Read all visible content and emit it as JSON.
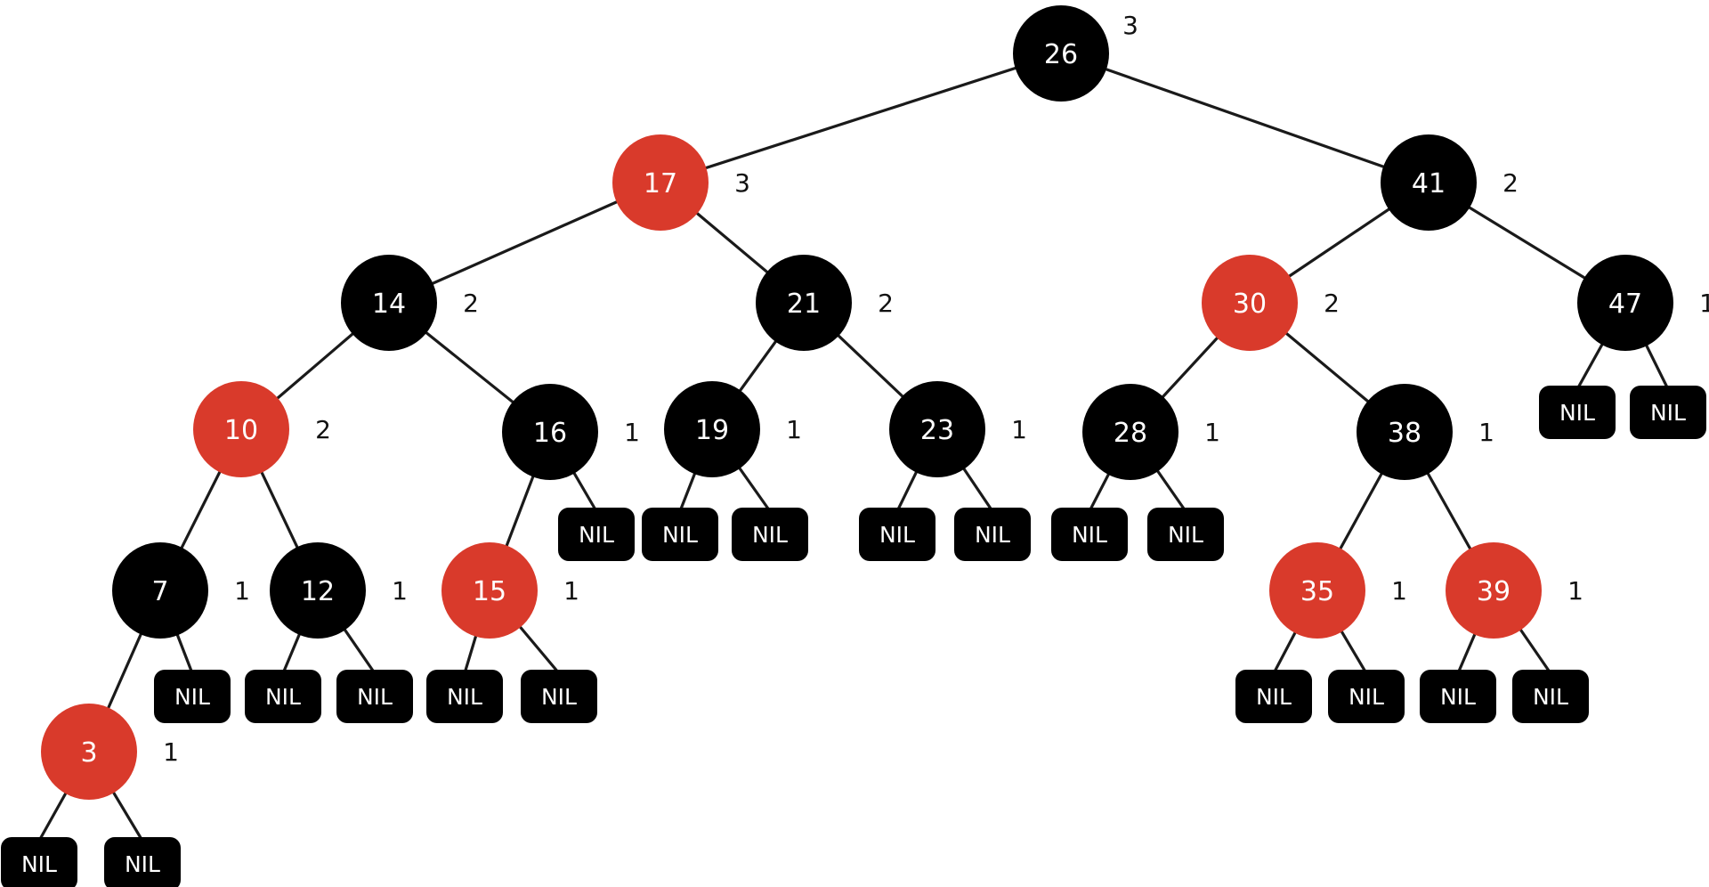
{
  "colors": {
    "red": "#d93a2b",
    "black": "#000000",
    "nil": "#000000",
    "edge": "#1a1a1a",
    "text_light": "#ffffff",
    "text_dark": "#111111"
  },
  "nil_label": "NIL",
  "nodes": [
    {
      "id": "n26",
      "key": "26",
      "color": "black",
      "bh": "3",
      "left": "n17",
      "right": "n41"
    },
    {
      "id": "n17",
      "key": "17",
      "color": "red",
      "bh": "3",
      "left": "n14",
      "right": "n21"
    },
    {
      "id": "n41",
      "key": "41",
      "color": "black",
      "bh": "2",
      "left": "n30",
      "right": "n47"
    },
    {
      "id": "n14",
      "key": "14",
      "color": "black",
      "bh": "2",
      "left": "n10",
      "right": "n16"
    },
    {
      "id": "n21",
      "key": "21",
      "color": "black",
      "bh": "2",
      "left": "n19",
      "right": "n23"
    },
    {
      "id": "n30",
      "key": "30",
      "color": "red",
      "bh": "2",
      "left": "n28",
      "right": "n38"
    },
    {
      "id": "n47",
      "key": "47",
      "color": "black",
      "bh": "1",
      "left": null,
      "right": null
    },
    {
      "id": "n10",
      "key": "10",
      "color": "red",
      "bh": "2",
      "left": "n7",
      "right": "n12"
    },
    {
      "id": "n16",
      "key": "16",
      "color": "black",
      "bh": "1",
      "left": "n15",
      "right": null
    },
    {
      "id": "n19",
      "key": "19",
      "color": "black",
      "bh": "1",
      "left": null,
      "right": null
    },
    {
      "id": "n23",
      "key": "23",
      "color": "black",
      "bh": "1",
      "left": null,
      "right": null
    },
    {
      "id": "n28",
      "key": "28",
      "color": "black",
      "bh": "1",
      "left": null,
      "right": null
    },
    {
      "id": "n38",
      "key": "38",
      "color": "black",
      "bh": "1",
      "left": "n35",
      "right": "n39"
    },
    {
      "id": "n7",
      "key": "7",
      "color": "black",
      "bh": "1",
      "left": "n3",
      "right": null
    },
    {
      "id": "n12",
      "key": "12",
      "color": "black",
      "bh": "1",
      "left": null,
      "right": null
    },
    {
      "id": "n15",
      "key": "15",
      "color": "red",
      "bh": "1",
      "left": null,
      "right": null
    },
    {
      "id": "n35",
      "key": "35",
      "color": "red",
      "bh": "1",
      "left": null,
      "right": null
    },
    {
      "id": "n39",
      "key": "39",
      "color": "red",
      "bh": "1",
      "left": null,
      "right": null
    },
    {
      "id": "n3",
      "key": "3",
      "color": "red",
      "bh": "1",
      "left": null,
      "right": null
    }
  ]
}
